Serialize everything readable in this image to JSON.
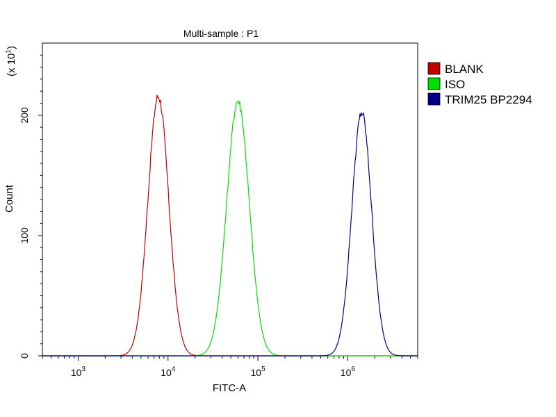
{
  "chart_data": {
    "type": "line",
    "title": "Multi-sample : P1",
    "xlabel": "FITC-A",
    "ylabel": "Count",
    "y_multiplier_label": "(x 10",
    "y_multiplier_exp": "1",
    "y_multiplier_close": ")",
    "x_scale": "log",
    "xlim": [
      400,
      6000000
    ],
    "ylim": [
      0,
      260
    ],
    "x_ticks": [
      {
        "value": 1000,
        "base": "10",
        "exp": "3"
      },
      {
        "value": 10000,
        "base": "10",
        "exp": "4"
      },
      {
        "value": 100000,
        "base": "10",
        "exp": "5"
      },
      {
        "value": 1000000,
        "base": "10",
        "exp": "6"
      }
    ],
    "y_ticks": [
      {
        "value": 0,
        "label": "0"
      },
      {
        "value": 100,
        "label": "100"
      },
      {
        "value": 200,
        "label": "200"
      }
    ],
    "grid": false,
    "legend_position": "top-right",
    "series": [
      {
        "name": "BLANK",
        "color": "#c00000",
        "peak_x": 7800,
        "peak_y": 216,
        "log_sigma": 0.115
      },
      {
        "name": "ISO",
        "color": "#00e000",
        "peak_x": 60000,
        "peak_y": 212,
        "log_sigma": 0.125
      },
      {
        "name": "TRIM25 BP2294",
        "color": "#00008b",
        "peak_x": 1430000,
        "peak_y": 202,
        "log_sigma": 0.11
      }
    ]
  }
}
